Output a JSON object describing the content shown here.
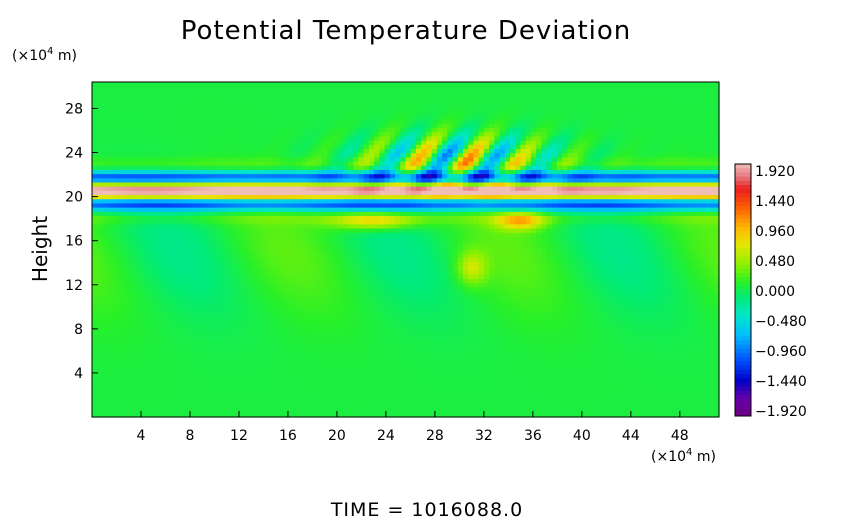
{
  "chart_data": {
    "type": "heatmap",
    "title": "Potential Temperature Deviation",
    "xlabel": "",
    "ylabel": "Height",
    "x_unit_prefix": "(×10",
    "x_unit_exp": "4",
    "x_unit_suffix": " m)",
    "y_unit_prefix": "(×10",
    "y_unit_exp": "4",
    "y_unit_suffix": " m)",
    "x_ticks": [
      4,
      8,
      12,
      16,
      20,
      24,
      28,
      32,
      36,
      40,
      44,
      48
    ],
    "y_ticks": [
      4,
      8,
      12,
      16,
      20,
      24,
      28
    ],
    "xlim": [
      0,
      51.2
    ],
    "ylim": [
      0,
      30.4
    ],
    "colorbar_labels": [
      "1.920",
      "1.440",
      "0.960",
      "0.480",
      "0.000",
      "−0.480",
      "−0.960",
      "−1.440",
      "−1.920"
    ],
    "colorbar_range": [
      -2.2,
      2.2
    ],
    "features": {
      "inversion_layer_center": 20.5,
      "wave_packet_x": [
        22,
        38
      ],
      "wave_packet_y": [
        21.5,
        27
      ]
    },
    "footer": "TIME  =  1016088.0"
  }
}
